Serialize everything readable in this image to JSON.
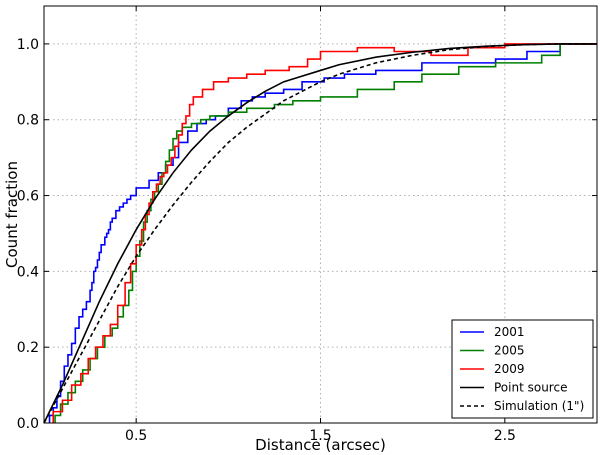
{
  "chart_data": {
    "type": "line",
    "xlabel": "Distance (arcsec)",
    "ylabel": "Count fraction",
    "xlim": [
      0,
      3
    ],
    "ylim": [
      0,
      1.1
    ],
    "xticks": [
      {
        "value": 0.5,
        "label": "0.5"
      },
      {
        "value": 1.5,
        "label": "1.5"
      },
      {
        "value": 2.5,
        "label": "2.5"
      }
    ],
    "yticks": [
      {
        "value": 0.0,
        "label": "0.0"
      },
      {
        "value": 0.2,
        "label": "0.2"
      },
      {
        "value": 0.4,
        "label": "0.4"
      },
      {
        "value": 0.6,
        "label": "0.6"
      },
      {
        "value": 0.8,
        "label": "0.8"
      },
      {
        "value": 1.0,
        "label": "1.0"
      }
    ],
    "grid": true,
    "legend_position": "bottom-right",
    "series": [
      {
        "name": "2001",
        "color": "#0000ff",
        "style": "step",
        "x": [
          0.03,
          0.05,
          0.07,
          0.09,
          0.11,
          0.13,
          0.15,
          0.17,
          0.19,
          0.21,
          0.23,
          0.25,
          0.26,
          0.27,
          0.28,
          0.29,
          0.3,
          0.31,
          0.33,
          0.34,
          0.35,
          0.36,
          0.37,
          0.39,
          0.41,
          0.43,
          0.45,
          0.47,
          0.5,
          0.53,
          0.57,
          0.62,
          0.66,
          0.7,
          0.73,
          0.78,
          0.83,
          0.88,
          0.93,
          1.0,
          1.07,
          1.13,
          1.2,
          1.3,
          1.4,
          1.52,
          1.63,
          1.8,
          2.05,
          2.45,
          2.62,
          2.8,
          3.0
        ],
        "y": [
          0.02,
          0.04,
          0.07,
          0.11,
          0.15,
          0.18,
          0.21,
          0.25,
          0.28,
          0.3,
          0.32,
          0.35,
          0.37,
          0.4,
          0.41,
          0.43,
          0.45,
          0.47,
          0.49,
          0.5,
          0.51,
          0.53,
          0.54,
          0.56,
          0.57,
          0.58,
          0.59,
          0.6,
          0.62,
          0.62,
          0.64,
          0.66,
          0.68,
          0.7,
          0.74,
          0.77,
          0.79,
          0.8,
          0.81,
          0.83,
          0.85,
          0.86,
          0.87,
          0.88,
          0.9,
          0.91,
          0.92,
          0.93,
          0.95,
          0.96,
          0.98,
          1.0,
          1.0
        ]
      },
      {
        "name": "2005",
        "color": "#008000",
        "style": "step",
        "x": [
          0.06,
          0.09,
          0.13,
          0.17,
          0.21,
          0.25,
          0.29,
          0.33,
          0.37,
          0.4,
          0.43,
          0.46,
          0.48,
          0.5,
          0.52,
          0.54,
          0.56,
          0.58,
          0.6,
          0.62,
          0.64,
          0.66,
          0.68,
          0.7,
          0.72,
          0.75,
          0.8,
          0.85,
          0.9,
          1.0,
          1.1,
          1.25,
          1.35,
          1.5,
          1.7,
          1.9,
          2.05,
          2.25,
          2.45,
          2.7,
          2.8,
          3.0
        ],
        "y": [
          0.02,
          0.05,
          0.08,
          0.11,
          0.14,
          0.17,
          0.2,
          0.23,
          0.25,
          0.28,
          0.31,
          0.35,
          0.4,
          0.44,
          0.48,
          0.53,
          0.56,
          0.59,
          0.61,
          0.63,
          0.66,
          0.69,
          0.72,
          0.75,
          0.77,
          0.78,
          0.79,
          0.8,
          0.81,
          0.82,
          0.83,
          0.84,
          0.85,
          0.86,
          0.88,
          0.9,
          0.92,
          0.94,
          0.95,
          0.97,
          1.0,
          1.0
        ]
      },
      {
        "name": "2009",
        "color": "#ff0000",
        "style": "step",
        "x": [
          0.05,
          0.1,
          0.15,
          0.2,
          0.24,
          0.28,
          0.32,
          0.36,
          0.4,
          0.44,
          0.47,
          0.5,
          0.53,
          0.55,
          0.57,
          0.59,
          0.61,
          0.63,
          0.65,
          0.67,
          0.69,
          0.71,
          0.73,
          0.75,
          0.77,
          0.79,
          0.81,
          0.86,
          0.92,
          1.0,
          1.1,
          1.2,
          1.33,
          1.43,
          1.5,
          1.7,
          1.9,
          2.1,
          2.3,
          2.5,
          2.75,
          3.0
        ],
        "y": [
          0.03,
          0.06,
          0.1,
          0.13,
          0.17,
          0.2,
          0.23,
          0.26,
          0.31,
          0.37,
          0.42,
          0.47,
          0.51,
          0.55,
          0.58,
          0.61,
          0.63,
          0.65,
          0.66,
          0.68,
          0.7,
          0.73,
          0.76,
          0.79,
          0.81,
          0.84,
          0.86,
          0.88,
          0.9,
          0.91,
          0.92,
          0.93,
          0.94,
          0.96,
          0.98,
          0.99,
          0.98,
          0.97,
          0.99,
          1.0,
          1.0,
          1.0
        ]
      },
      {
        "name": "Point source",
        "color": "#000000",
        "style": "solid",
        "x": [
          0.0,
          0.1,
          0.2,
          0.3,
          0.4,
          0.5,
          0.6,
          0.7,
          0.8,
          0.9,
          1.0,
          1.1,
          1.2,
          1.3,
          1.4,
          1.5,
          1.6,
          1.8,
          2.0,
          2.2,
          2.4,
          2.6,
          2.8,
          3.0
        ],
        "y": [
          0.0,
          0.1,
          0.21,
          0.32,
          0.42,
          0.51,
          0.59,
          0.66,
          0.72,
          0.77,
          0.81,
          0.845,
          0.875,
          0.9,
          0.915,
          0.93,
          0.945,
          0.965,
          0.978,
          0.988,
          0.994,
          0.998,
          1.0,
          1.0
        ]
      },
      {
        "name": "Simulation (1\")",
        "color": "#000000",
        "style": "dashed",
        "x": [
          0.0,
          0.1,
          0.2,
          0.3,
          0.4,
          0.5,
          0.6,
          0.7,
          0.8,
          0.9,
          1.0,
          1.1,
          1.2,
          1.3,
          1.4,
          1.5,
          1.6,
          1.8,
          2.0,
          2.2,
          2.4,
          2.6,
          2.8,
          3.0
        ],
        "y": [
          0.0,
          0.09,
          0.18,
          0.27,
          0.36,
          0.44,
          0.51,
          0.575,
          0.635,
          0.69,
          0.74,
          0.78,
          0.815,
          0.85,
          0.875,
          0.9,
          0.92,
          0.95,
          0.97,
          0.985,
          0.993,
          0.998,
          1.0,
          1.0
        ]
      }
    ]
  }
}
